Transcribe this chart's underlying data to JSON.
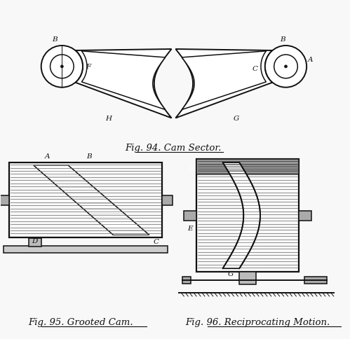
{
  "bg_color": "#f8f8f8",
  "line_color": "#111111",
  "fig94_title": "Fig. 94. Cam Sector.",
  "fig95_title": "Fig. 95. Grooted Cam.",
  "fig96_title": "Fig. 96. Reciprocating Motion.",
  "label_fontsize": 7.5,
  "caption_fontsize": 9.5
}
